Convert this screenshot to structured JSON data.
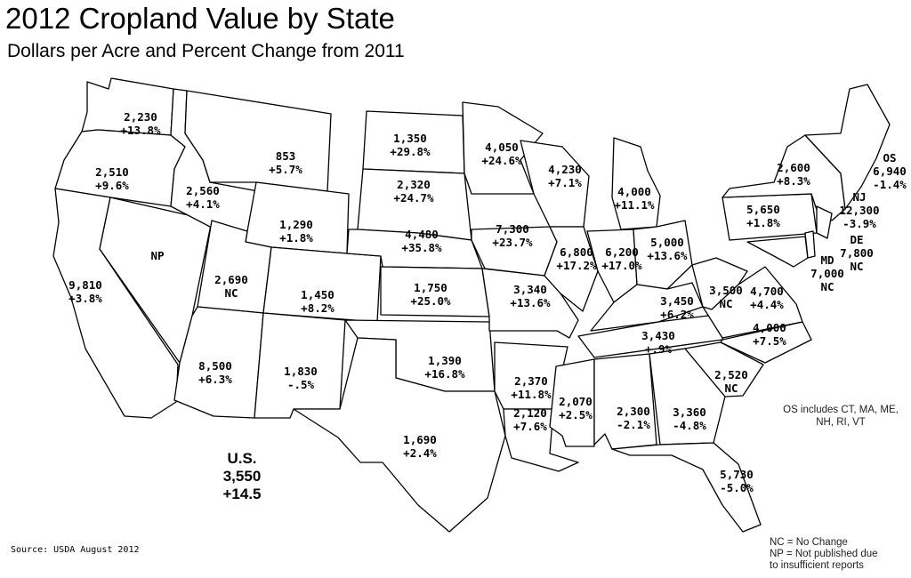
{
  "title": "2012 Cropland Value by State",
  "subtitle": "Dollars per Acre and Percent Change from 2011",
  "states": [
    {
      "name": "WA",
      "value": "2,230",
      "change": "+13.8%"
    },
    {
      "name": "OR",
      "value": "2,510",
      "change": "+9.6%"
    },
    {
      "name": "CA",
      "value": "9,810",
      "change": "+3.8%"
    },
    {
      "name": "NV",
      "value": "NP",
      "change": ""
    },
    {
      "name": "ID",
      "value": "2,560",
      "change": "+4.1%"
    },
    {
      "name": "MT",
      "value": "853",
      "change": "+5.7%"
    },
    {
      "name": "WY",
      "value": "1,290",
      "change": "+1.8%"
    },
    {
      "name": "UT",
      "value": "2,690",
      "change": "NC"
    },
    {
      "name": "CO",
      "value": "1,450",
      "change": "+8.2%"
    },
    {
      "name": "AZ",
      "value": "8,500",
      "change": "+6.3%"
    },
    {
      "name": "NM",
      "value": "1,830",
      "change": "-.5%"
    },
    {
      "name": "ND",
      "value": "1,350",
      "change": "+29.8%"
    },
    {
      "name": "SD",
      "value": "2,320",
      "change": "+24.7%"
    },
    {
      "name": "NE",
      "value": "4,480",
      "change": "+35.8%"
    },
    {
      "name": "KS",
      "value": "1,750",
      "change": "+25.0%"
    },
    {
      "name": "OK",
      "value": "1,390",
      "change": "+16.8%"
    },
    {
      "name": "TX",
      "value": "1,690",
      "change": "+2.4%"
    },
    {
      "name": "MN",
      "value": "4,050",
      "change": "+24.6%"
    },
    {
      "name": "IA",
      "value": "7,300",
      "change": "+23.7%"
    },
    {
      "name": "MO",
      "value": "3,340",
      "change": "+13.6%"
    },
    {
      "name": "AR",
      "value": "2,370",
      "change": "+11.8%"
    },
    {
      "name": "LA",
      "value": "2,120",
      "change": "+7.6%"
    },
    {
      "name": "WI",
      "value": "4,230",
      "change": "+7.1%"
    },
    {
      "name": "IL",
      "value": "6,800",
      "change": "+17.2%"
    },
    {
      "name": "MI",
      "value": "4,000",
      "change": "+11.1%"
    },
    {
      "name": "IN",
      "value": "6,200",
      "change": "+17.0%"
    },
    {
      "name": "OH",
      "value": "5,000",
      "change": "+13.6%"
    },
    {
      "name": "KY",
      "value": "3,450",
      "change": "+6.2%"
    },
    {
      "name": "TN",
      "value": "3,430",
      "change": "+.9%"
    },
    {
      "name": "MS",
      "value": "2,070",
      "change": "+2.5%"
    },
    {
      "name": "AL",
      "value": "2,300",
      "change": "-2.1%"
    },
    {
      "name": "GA",
      "value": "3,360",
      "change": "-4.8%"
    },
    {
      "name": "FL",
      "value": "5,730",
      "change": "-5.0%"
    },
    {
      "name": "SC",
      "value": "2,520",
      "change": "NC"
    },
    {
      "name": "NC",
      "value": "4,000",
      "change": "+7.5%"
    },
    {
      "name": "VA",
      "value": "4,700",
      "change": "+4.4%"
    },
    {
      "name": "WV",
      "value": "3,500",
      "change": "NC"
    },
    {
      "name": "PA",
      "value": "5,650",
      "change": "+1.8%"
    },
    {
      "name": "NY",
      "value": "2,600",
      "change": "+8.3%"
    },
    {
      "name": "MD",
      "value": "MD\n7,000",
      "change": "NC"
    },
    {
      "name": "DE",
      "value": "DE\n7,800",
      "change": "NC"
    },
    {
      "name": "NJ",
      "value": "NJ\n12,300",
      "change": "-3.9%"
    },
    {
      "name": "OS",
      "value": "OS\n6,940",
      "change": "-1.4%"
    }
  ],
  "us": {
    "label": "U.S.",
    "value": "3,550",
    "change": "+14.5"
  },
  "source": "Source: USDA August 2012",
  "os_note": "OS includes CT, MA, ME, NH, RI, VT",
  "legend": {
    "nc": "NC = No Change",
    "np_line1": "NP = Not published due",
    "np_line2": "to insufficient reports"
  }
}
